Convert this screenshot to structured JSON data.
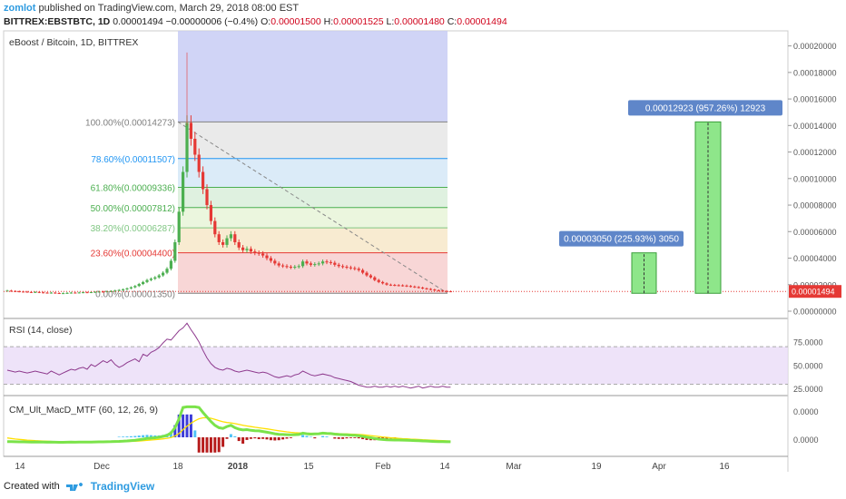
{
  "header": {
    "author": "zomlot",
    "published": " published on TradingView.com, March 29, 2018 08:00 EST",
    "symbol": "BITTREX:EBSTBTC, 1D",
    "last": "0.00001494",
    "change": "−0.00000006 (−0.4%)",
    "o_label": "O:",
    "o_value": "0.00001500",
    "h_label": "H:",
    "h_value": "0.00001525",
    "l_label": "L:",
    "l_value": "0.00001480",
    "c_label": "C:",
    "c_value": "0.00001494"
  },
  "footer": {
    "created_with": "Created with",
    "brand": "TradingView"
  },
  "colors": {
    "up": "#4caf50",
    "down": "#e53935",
    "accent": "#2e9be0",
    "rsi": "#8e3a8e",
    "fib_header": "#c8cdf5"
  },
  "chart_data": [
    {
      "type": "candlestick",
      "title": "eBoost / Bitcoin, 1D, BITTREX",
      "ylim": [
        0,
        0.00021
      ],
      "y_ticks": [
        "0.00000000",
        "0.00002000",
        "0.00004000",
        "0.00006000",
        "0.00008000",
        "0.00010000",
        "0.00012000",
        "0.00014000",
        "0.00016000",
        "0.00018000",
        "0.00020000"
      ],
      "last_price_label": "0.00001494",
      "fib_levels": [
        {
          "label": "100.00%(0.00014273)",
          "value": 0.00014273,
          "color": "#808080"
        },
        {
          "label": "78.60%(0.00011507)",
          "value": 0.00011507,
          "color": "#2196f3"
        },
        {
          "label": "61.80%(0.00009336)",
          "value": 9.336e-05,
          "color": "#4caf50"
        },
        {
          "label": "50.00%(0.00007812)",
          "value": 7.812e-05,
          "color": "#4caf50"
        },
        {
          "label": "38.20%(0.00006287)",
          "value": 6.287e-05,
          "color": "#81c784"
        },
        {
          "label": "23.60%(0.00004400)",
          "value": 4.4e-05,
          "color": "#e53935"
        },
        {
          "label": "0.00%(0.00001350)",
          "value": 1.35e-05,
          "color": "#808080"
        }
      ],
      "targets": [
        {
          "label": "0.00003050 (225.93%) 3050",
          "from": 1.35e-05,
          "to": 4.4e-05
        },
        {
          "label": "0.00012923 (957.26%) 12923",
          "from": 1.35e-05,
          "to": 0.00014273
        }
      ],
      "close": [
        1.55e-05,
        1.52e-05,
        1.5e-05,
        1.48e-05,
        1.47e-05,
        1.45e-05,
        1.43e-05,
        1.45e-05,
        1.42e-05,
        1.4e-05,
        1.38e-05,
        1.4e-05,
        1.37e-05,
        1.35e-05,
        1.36e-05,
        1.38e-05,
        1.4e-05,
        1.39e-05,
        1.41e-05,
        1.43e-05,
        1.42e-05,
        1.44e-05,
        1.46e-05,
        1.48e-05,
        1.47e-05,
        1.5e-05,
        1.52e-05,
        1.56e-05,
        1.6e-05,
        1.65e-05,
        1.72e-05,
        1.8e-05,
        1.9e-05,
        2.05e-05,
        2.2e-05,
        2.35e-05,
        2.45e-05,
        2.55e-05,
        2.7e-05,
        2.9e-05,
        3.2e-05,
        3.8e-05,
        5.2e-05,
        7.5e-05,
        0.000105,
        0.000142,
        0.00013,
        0.000118,
        0.000105,
        9.2e-05,
        8e-05,
        6.8e-05,
        5.8e-05,
        5.2e-05,
        5e-05,
        5.5e-05,
        5.8e-05,
        5.2e-05,
        4.8e-05,
        4.6e-05,
        4.7e-05,
        4.5e-05,
        4.4e-05,
        4.35e-05,
        4.2e-05,
        4e-05,
        3.8e-05,
        3.6e-05,
        3.45e-05,
        3.4e-05,
        3.35e-05,
        3.3e-05,
        3.35e-05,
        3.4e-05,
        3.75e-05,
        3.6e-05,
        3.5e-05,
        3.55e-05,
        3.6e-05,
        3.75e-05,
        3.7e-05,
        3.65e-05,
        3.5e-05,
        3.4e-05,
        3.35e-05,
        3.3e-05,
        3.25e-05,
        3.2e-05,
        3.1e-05,
        2.9e-05,
        2.7e-05,
        2.55e-05,
        2.35e-05,
        2.2e-05,
        2.1e-05,
        2e-05,
        1.98e-05,
        1.96e-05,
        1.95e-05,
        1.93e-05,
        1.9e-05,
        1.86e-05,
        1.82e-05,
        1.78e-05,
        1.72e-05,
        1.68e-05,
        1.63e-05,
        1.58e-05,
        1.55e-05,
        1.52e-05,
        1.5e-05,
        1.49e-05
      ]
    },
    {
      "type": "line",
      "title": "RSI (14, close)",
      "ylim": [
        18,
        100
      ],
      "y_ticks": [
        "25.0000",
        "50.0000",
        "75.0000"
      ],
      "bands": [
        30,
        70
      ],
      "values": [
        45,
        44,
        43,
        44,
        43,
        42,
        43,
        44,
        43,
        42,
        41,
        44,
        42,
        40,
        42,
        44,
        46,
        45,
        47,
        48,
        46,
        51,
        49,
        52,
        55,
        53,
        56,
        51,
        48,
        50,
        53,
        55,
        57,
        54,
        62,
        60,
        64,
        66,
        69,
        74,
        78,
        77,
        82,
        87,
        90,
        95,
        88,
        82,
        75,
        66,
        58,
        52,
        48,
        46,
        45,
        47,
        46,
        44,
        43,
        44,
        45,
        44,
        43,
        42,
        43,
        42,
        40,
        38,
        37,
        38,
        39,
        38,
        40,
        41,
        44,
        42,
        40,
        39,
        40,
        41,
        40,
        39,
        37,
        36,
        35,
        34,
        33,
        31,
        29,
        28,
        27,
        27,
        28,
        27,
        27,
        28,
        27,
        28,
        27,
        28,
        27,
        26,
        27,
        28,
        26,
        27,
        28,
        27,
        27,
        28,
        27,
        27
      ]
    },
    {
      "type": "line",
      "title": "CM_Ult_MacD_MTF (60, 12, 26, 9)",
      "y_ticks": [
        "0.0000",
        "0.0000"
      ],
      "series": []
    }
  ],
  "x_axis": {
    "labels": [
      "14",
      "Dec",
      "18",
      "2018",
      "15",
      "Feb",
      "14",
      "Mar",
      "19",
      "Apr",
      "16"
    ]
  }
}
